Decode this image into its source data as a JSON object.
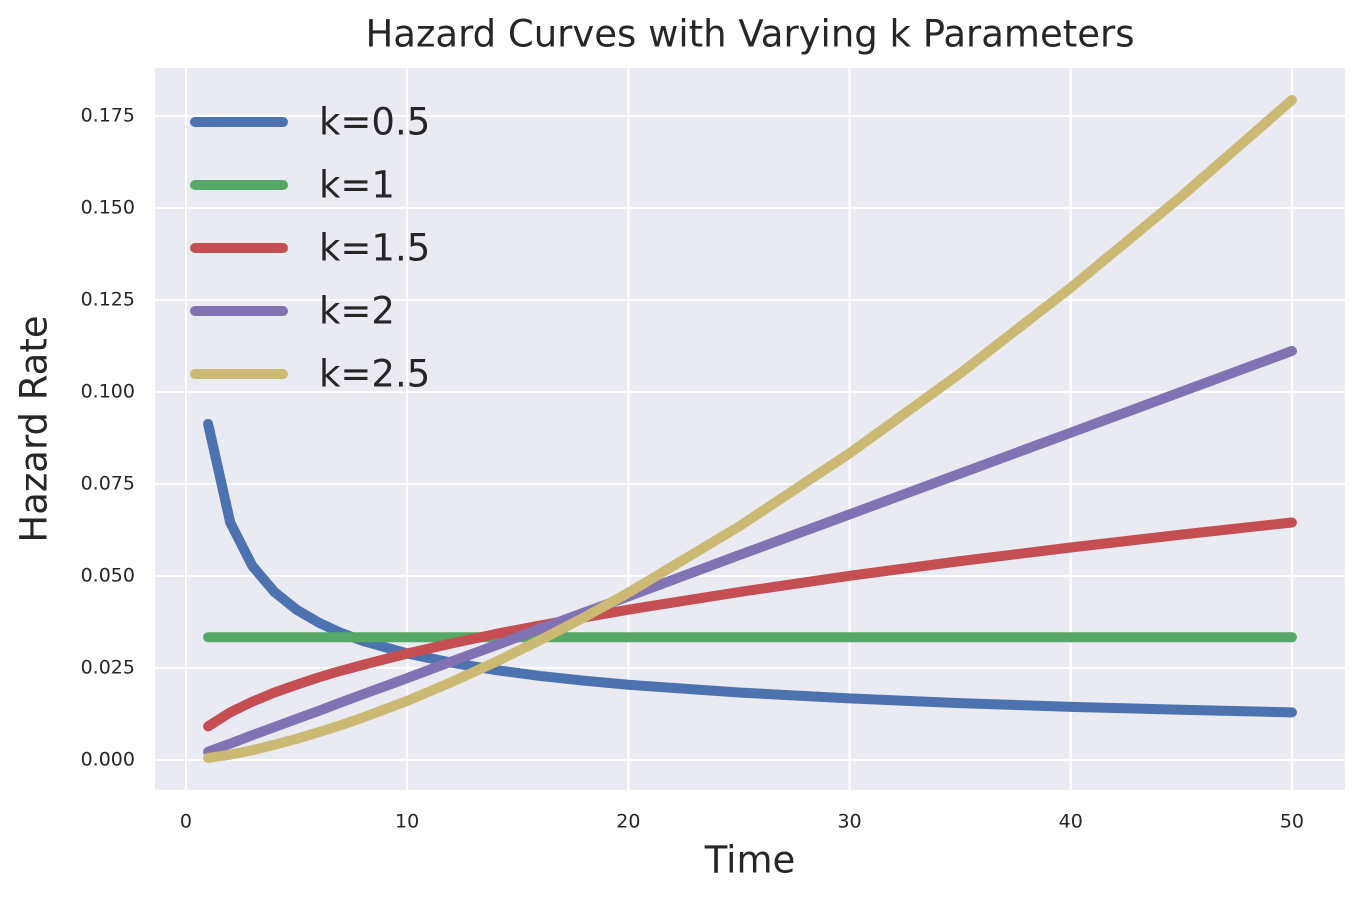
{
  "chart_data": {
    "type": "line",
    "title": "Hazard Curves with Varying k Parameters",
    "x_label": "Time",
    "y_label": "Hazard Rate",
    "x": [
      1,
      2,
      3,
      4,
      5,
      6,
      7,
      8,
      10,
      12,
      14,
      16,
      18,
      20,
      25,
      30,
      35,
      40,
      45,
      50
    ],
    "series": [
      {
        "name": "k=0.5",
        "color": "#4c72b0",
        "values": [
          0.0913,
          0.0645,
          0.0527,
          0.0456,
          0.0408,
          0.0373,
          0.0345,
          0.0323,
          0.0289,
          0.0264,
          0.0244,
          0.0228,
          0.0215,
          0.0204,
          0.0183,
          0.0167,
          0.0154,
          0.0144,
          0.0136,
          0.0129
        ]
      },
      {
        "name": "k=1",
        "color": "#55a868",
        "values": [
          0.0333,
          0.0333,
          0.0333,
          0.0333,
          0.0333,
          0.0333,
          0.0333,
          0.0333,
          0.0333,
          0.0333,
          0.0333,
          0.0333,
          0.0333,
          0.0333,
          0.0333,
          0.0333,
          0.0333,
          0.0333,
          0.0333,
          0.0333
        ]
      },
      {
        "name": "k=1.5",
        "color": "#c44e52",
        "values": [
          0.0091,
          0.0129,
          0.0158,
          0.0183,
          0.0204,
          0.0224,
          0.0242,
          0.0258,
          0.0289,
          0.0316,
          0.0342,
          0.0365,
          0.0387,
          0.0408,
          0.0456,
          0.05,
          0.054,
          0.0577,
          0.0612,
          0.0645
        ]
      },
      {
        "name": "k=2",
        "color": "#8172b3",
        "values": [
          0.0022,
          0.0044,
          0.0067,
          0.0089,
          0.0111,
          0.0133,
          0.0156,
          0.0178,
          0.0222,
          0.0267,
          0.0311,
          0.0356,
          0.04,
          0.0444,
          0.0556,
          0.0667,
          0.0778,
          0.0889,
          0.1,
          0.1111
        ]
      },
      {
        "name": "k=2.5",
        "color": "#ccb974",
        "values": [
          0.0005,
          0.0014,
          0.0026,
          0.0041,
          0.0057,
          0.0075,
          0.0094,
          0.0115,
          0.016,
          0.0211,
          0.0266,
          0.0325,
          0.0387,
          0.0454,
          0.0634,
          0.0833,
          0.105,
          0.1283,
          0.1531,
          0.1793
        ]
      }
    ],
    "xlim": [
      -1.4,
      52.4
    ],
    "ylim": [
      -0.0082,
      0.188
    ],
    "xticks": [
      0,
      10,
      20,
      30,
      40,
      50
    ],
    "yticks": [
      {
        "value": 0,
        "label": "0.000"
      },
      {
        "value": 0.025,
        "label": "0.025"
      },
      {
        "value": 0.05,
        "label": "0.050"
      },
      {
        "value": 0.075,
        "label": "0.075"
      },
      {
        "value": 0.1,
        "label": "0.100"
      },
      {
        "value": 0.125,
        "label": "0.125"
      },
      {
        "value": 0.15,
        "label": "0.150"
      },
      {
        "value": 0.175,
        "label": "0.175"
      }
    ],
    "grid": true,
    "legend": "upper left"
  }
}
